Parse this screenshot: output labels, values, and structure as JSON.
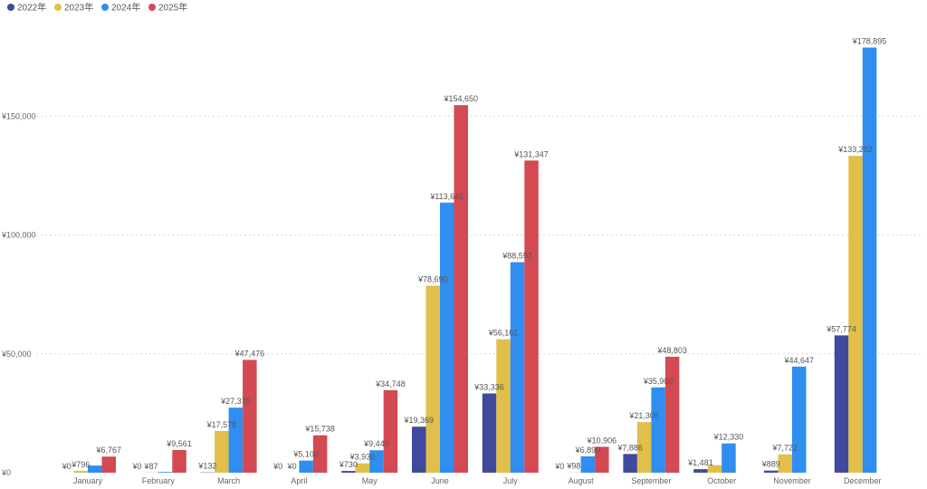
{
  "chart_data": {
    "type": "bar",
    "categories": [
      "January",
      "February",
      "March",
      "April",
      "May",
      "June",
      "July",
      "August",
      "September",
      "October",
      "November",
      "December"
    ],
    "series": [
      {
        "name": "2022年",
        "color": "#3f4a9e",
        "values": [
          0,
          0,
          132,
          0,
          730,
          19369,
          33336,
          0,
          7886,
          1481,
          889,
          57774
        ],
        "labels": [
          "¥0",
          "¥0",
          "¥132",
          "¥0",
          "¥730",
          "¥19,369",
          "¥33,336",
          "¥0",
          "¥7,886",
          "¥1,481",
          "¥889",
          "¥57,774"
        ]
      },
      {
        "name": "2023年",
        "color": "#e1bf4a",
        "values": [
          796,
          87,
          17578,
          0,
          3930,
          78690,
          56161,
          98,
          21305,
          3200,
          7722,
          133292
        ],
        "labels": [
          "¥796",
          "¥87",
          "¥17,578",
          "¥0",
          "¥3,930",
          "¥78,690",
          "¥56,161",
          "¥98",
          "¥21,305",
          "",
          "¥7,722",
          "¥133,292"
        ]
      },
      {
        "name": "2024年",
        "color": "#2f8ef0",
        "values": [
          3000,
          300,
          27370,
          5100,
          9440,
          113645,
          88592,
          6890,
          35900,
          12330,
          44647,
          178895
        ],
        "labels": [
          "",
          "",
          "¥27,370",
          "¥5,100",
          "¥9,440",
          "¥113,645",
          "¥88,592",
          "¥6,890",
          "¥35,900",
          "¥12,330",
          "¥44,647",
          "¥178,895"
        ]
      },
      {
        "name": "2025年",
        "color": "#d34a52",
        "values": [
          6767,
          9561,
          47476,
          15738,
          34748,
          154650,
          131347,
          10906,
          48803,
          0,
          0,
          0
        ],
        "labels": [
          "¥6,767",
          "¥9,561",
          "¥47,476",
          "¥15,738",
          "¥34,748",
          "¥154,650",
          "¥131,347",
          "¥10,906",
          "¥48,803",
          "",
          "",
          ""
        ]
      }
    ],
    "y_ticks": [
      0,
      50000,
      100000,
      150000
    ],
    "y_tick_labels": [
      "¥0",
      "¥50,000",
      "¥100,000",
      "¥150,000"
    ],
    "ylim": [
      0,
      197000
    ],
    "grid": true,
    "legend_position": "top-left",
    "title": "",
    "xlabel": "",
    "ylabel": ""
  }
}
